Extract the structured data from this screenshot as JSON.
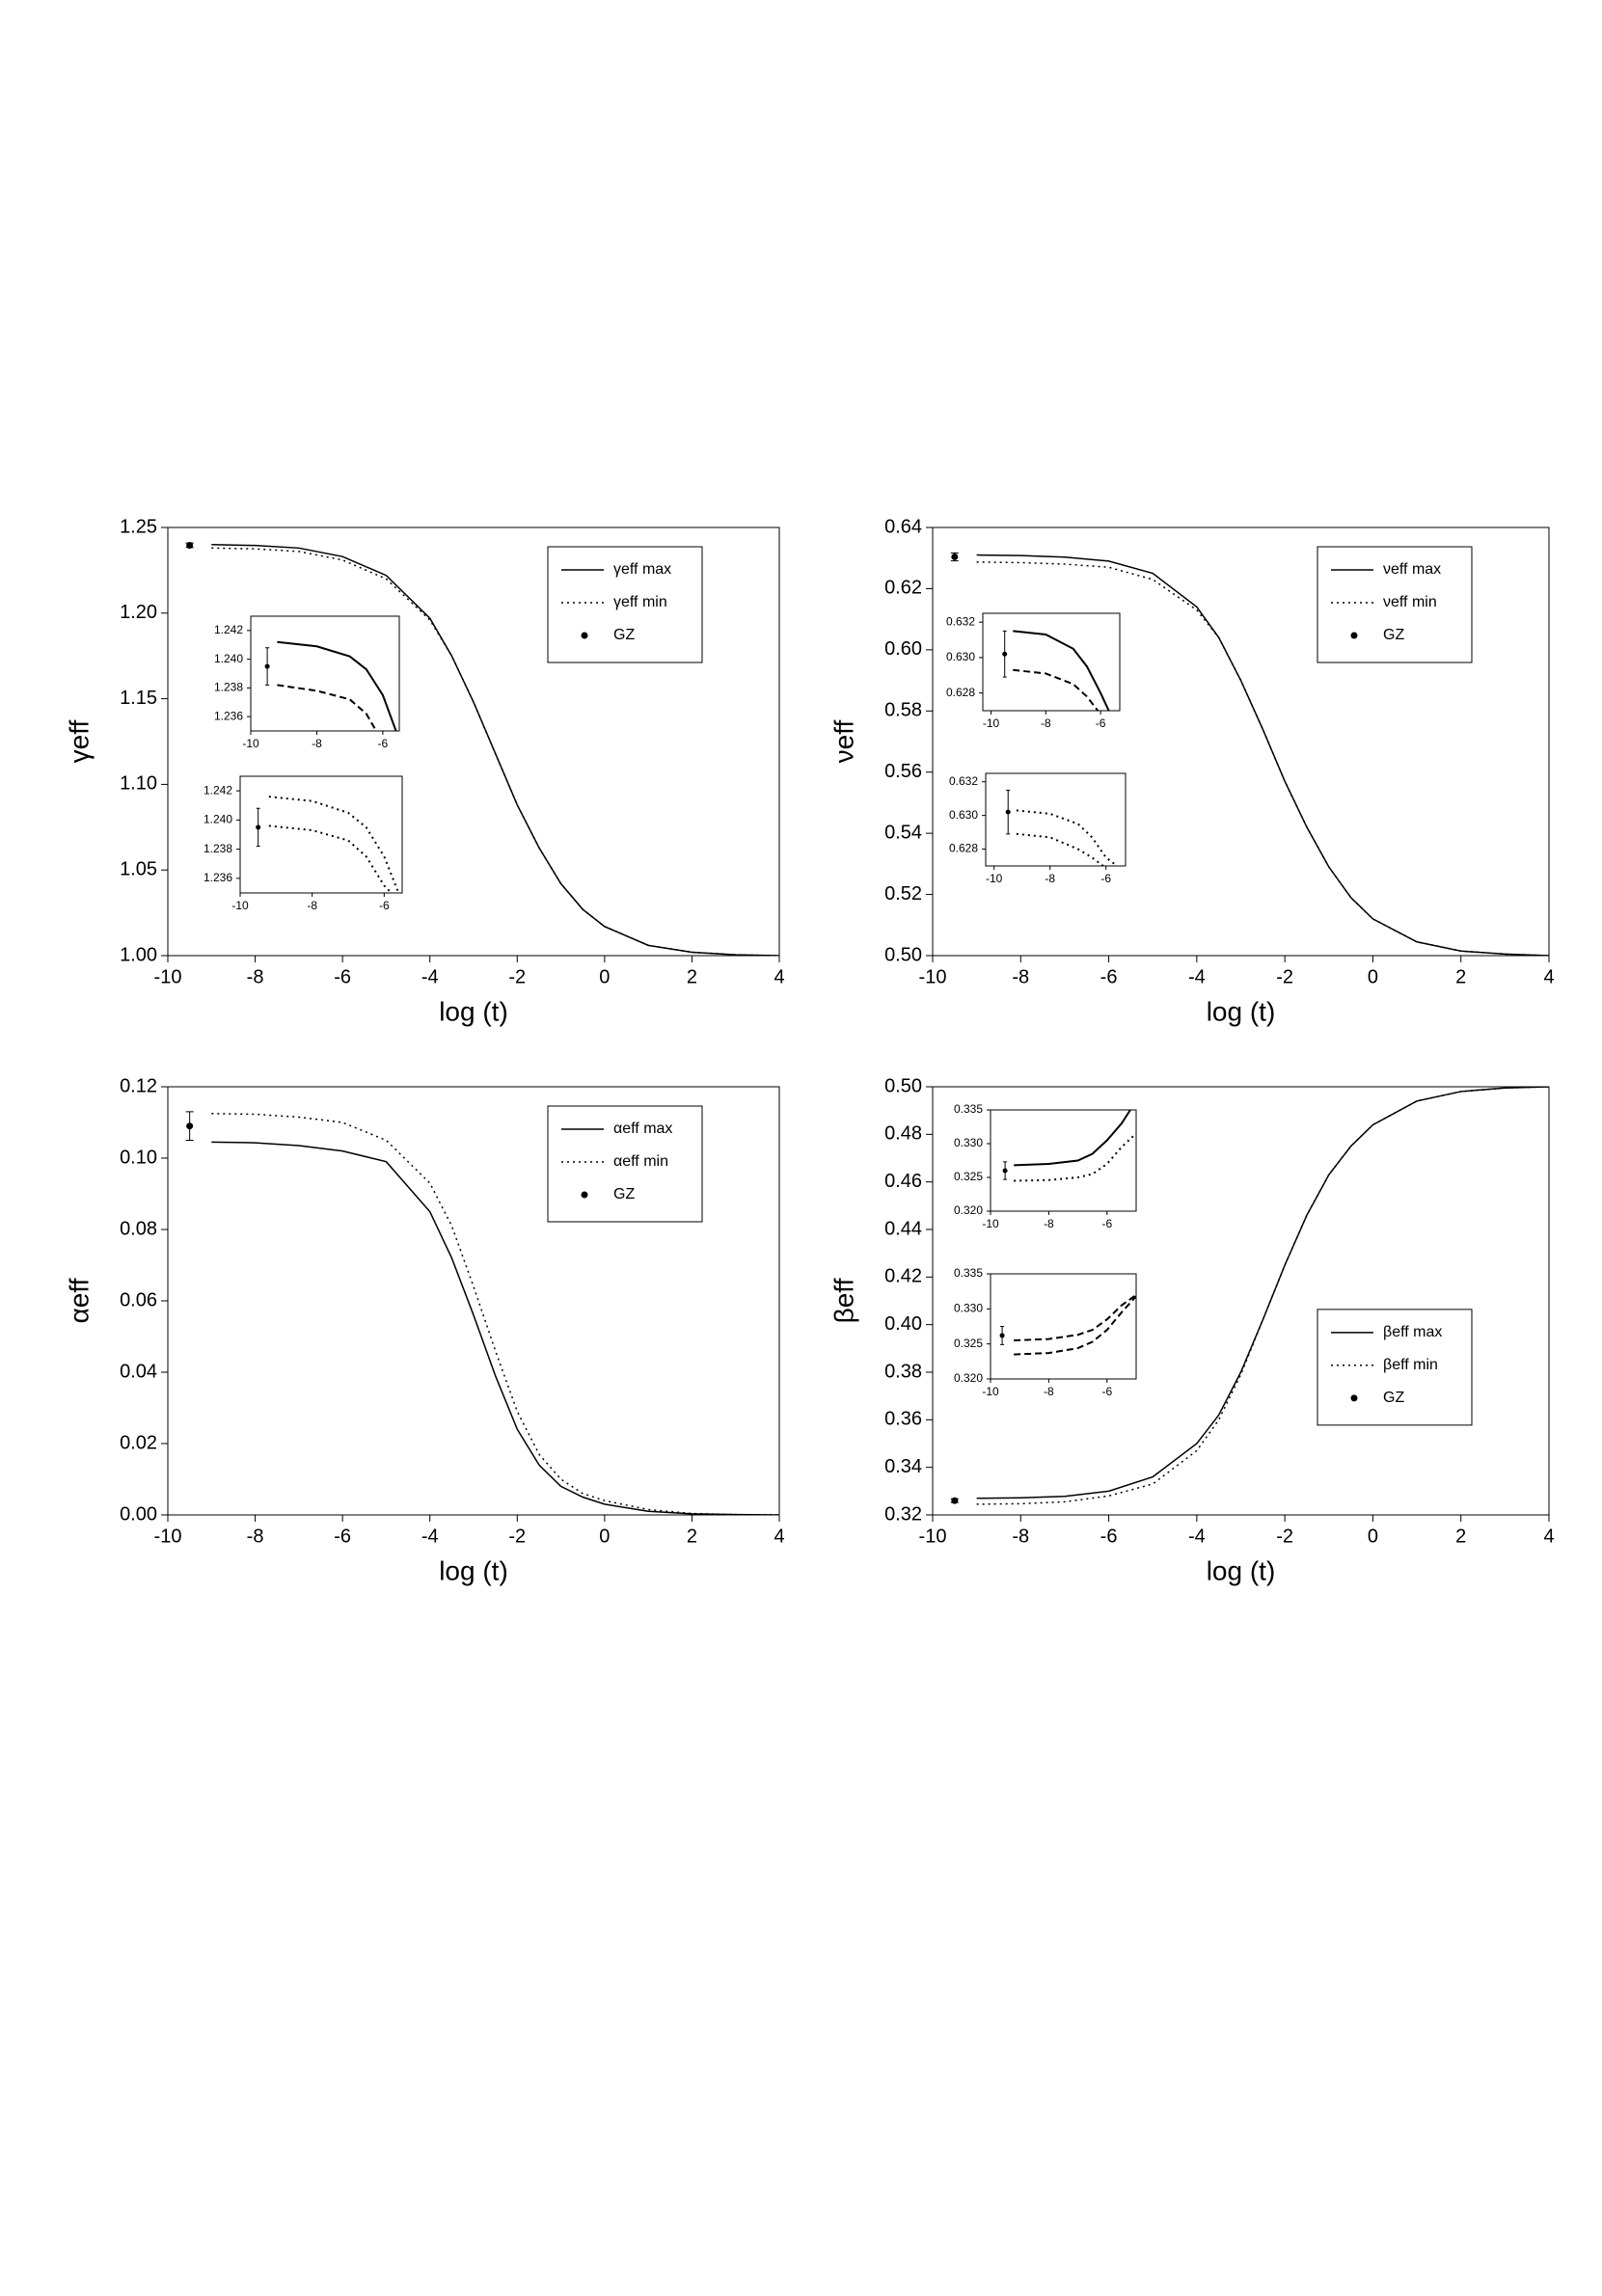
{
  "chart_data": [
    {
      "type": "line",
      "x_label": "log (t)",
      "y_label": "γeff",
      "legend": "upper right",
      "xlim": [
        -10,
        4
      ],
      "xticks": [
        -10,
        -8,
        -6,
        -4,
        -2,
        0,
        2,
        4
      ],
      "ylim": [
        1.0,
        1.25
      ],
      "yticks": [
        {
          "value": 1.0,
          "label": "1.00"
        },
        1.05,
        {
          "value": 1.1,
          "label": "1.10"
        },
        1.15,
        {
          "value": 1.2,
          "label": "1.20"
        },
        1.25
      ],
      "series": [
        {
          "name": "γeff max",
          "color": "#000000",
          "dash": "solid",
          "x": [
            -9,
            -8,
            -7,
            -6,
            -5,
            -4,
            -3.5,
            -3,
            -2.5,
            -2,
            -1.5,
            -1,
            -0.5,
            0,
            1,
            2,
            3,
            4
          ],
          "values": [
            1.24,
            1.2395,
            1.238,
            1.233,
            1.222,
            1.197,
            1.175,
            1.148,
            1.118,
            1.088,
            1.063,
            1.042,
            1.027,
            1.017,
            1.006,
            1.002,
            1.0005,
            1.0
          ]
        },
        {
          "name": "γeff min",
          "color": "#000000",
          "dash": "dotted",
          "x": [
            -9,
            -8,
            -7,
            -6,
            -5,
            -4,
            -3.5,
            -3,
            -2.5,
            -2,
            -1.5,
            -1,
            -0.5,
            0,
            1,
            2,
            3,
            4
          ],
          "values": [
            1.238,
            1.2375,
            1.236,
            1.231,
            1.22,
            1.196,
            1.175,
            1.148,
            1.118,
            1.088,
            1.063,
            1.042,
            1.027,
            1.017,
            1.006,
            1.002,
            1.0005,
            1.0
          ]
        },
        {
          "name": "GZ",
          "color": "#000000",
          "x": [
            -9.5
          ],
          "values": [
            1.2396
          ],
          "errors": [
            0.0013
          ]
        }
      ]
    },
    {
      "type": "line",
      "x_label": "log (t)",
      "y_label": "νeff",
      "legend": "upper right",
      "xlim": [
        -10,
        4
      ],
      "xticks": [
        -10,
        -8,
        -6,
        -4,
        -2,
        0,
        2,
        4
      ],
      "ylim": [
        0.5,
        0.64
      ],
      "yticks": [
        {
          "value": 0.5,
          "label": "0.50"
        },
        0.52,
        0.54,
        0.56,
        0.58,
        {
          "value": 0.6,
          "label": "0.60"
        },
        0.62,
        0.64
      ],
      "series": [
        {
          "name": "νeff max",
          "color": "#000000",
          "dash": "solid",
          "x": [
            -9,
            -8,
            -7,
            -6,
            -5,
            -4,
            -3.5,
            -3,
            -2.5,
            -2,
            -1.5,
            -1,
            -0.5,
            0,
            1,
            2,
            3,
            4
          ],
          "values": [
            0.631,
            0.6308,
            0.6303,
            0.629,
            0.625,
            0.614,
            0.604,
            0.59,
            0.574,
            0.557,
            0.542,
            0.529,
            0.519,
            0.512,
            0.5045,
            0.5015,
            0.5005,
            0.5
          ]
        },
        {
          "name": "νeff min",
          "color": "#000000",
          "dash": "dotted",
          "x": [
            -9,
            -8,
            -7,
            -6,
            -5,
            -4,
            -3.5,
            -3,
            -2.5,
            -2,
            -1.5,
            -1,
            -0.5,
            0,
            1,
            2,
            3,
            4
          ],
          "values": [
            0.6287,
            0.6285,
            0.628,
            0.627,
            0.623,
            0.613,
            0.604,
            0.59,
            0.574,
            0.557,
            0.542,
            0.529,
            0.519,
            0.512,
            0.5045,
            0.5015,
            0.5005,
            0.5
          ]
        },
        {
          "name": "GZ",
          "color": "#000000",
          "x": [
            -9.5
          ],
          "values": [
            0.6304
          ],
          "errors": [
            0.0013
          ]
        }
      ]
    },
    {
      "type": "line",
      "x_label": "log (t)",
      "y_label": "αeff",
      "legend": "upper right",
      "xlim": [
        -10,
        4
      ],
      "xticks": [
        -10,
        -8,
        -6,
        -4,
        -2,
        0,
        2,
        4
      ],
      "ylim": [
        0.0,
        0.12
      ],
      "yticks": [
        {
          "value": 0.0,
          "label": "0.00"
        },
        0.02,
        0.04,
        0.06,
        0.08,
        {
          "value": 0.1,
          "label": "0.10"
        },
        0.12
      ],
      "series": [
        {
          "name": "αeff max",
          "color": "#000000",
          "dash": "solid",
          "x": [
            -9,
            -8,
            -7,
            -6,
            -5,
            -4,
            -3.5,
            -3,
            -2.5,
            -2,
            -1.5,
            -1,
            -0.5,
            0,
            1,
            2,
            3,
            4
          ],
          "values": [
            0.1045,
            0.1043,
            0.1035,
            0.102,
            0.099,
            0.085,
            0.072,
            0.056,
            0.039,
            0.024,
            0.014,
            0.008,
            0.005,
            0.003,
            0.001,
            0.0003,
            0.0001,
            0.0
          ]
        },
        {
          "name": "αeff min",
          "color": "#000000",
          "dash": "dotted",
          "x": [
            -9,
            -8,
            -7,
            -6,
            -5,
            -4,
            -3.5,
            -3,
            -2.5,
            -2,
            -1.5,
            -1,
            -0.5,
            0,
            1,
            2,
            3,
            4
          ],
          "values": [
            0.1125,
            0.1123,
            0.1115,
            0.11,
            0.105,
            0.093,
            0.081,
            0.064,
            0.046,
            0.029,
            0.017,
            0.01,
            0.006,
            0.004,
            0.0015,
            0.0004,
            0.0001,
            0.0
          ]
        },
        {
          "name": "GZ",
          "color": "#000000",
          "x": [
            -9.5
          ],
          "values": [
            0.109
          ],
          "errors": [
            0.004
          ]
        }
      ]
    },
    {
      "type": "line",
      "x_label": "log (t)",
      "y_label": "βeff",
      "legend": "center right",
      "xlim": [
        -10,
        4
      ],
      "xticks": [
        -10,
        -8,
        -6,
        -4,
        -2,
        0,
        2,
        4
      ],
      "ylim": [
        0.32,
        0.5
      ],
      "yticks": [
        0.32,
        0.34,
        0.36,
        0.38,
        {
          "value": 0.4,
          "label": "0.40"
        },
        0.42,
        0.44,
        0.46,
        0.48,
        {
          "value": 0.5,
          "label": "0.50"
        }
      ],
      "series": [
        {
          "name": "βeff max",
          "color": "#000000",
          "dash": "solid",
          "x": [
            -9,
            -8,
            -7,
            -6,
            -5,
            -4,
            -3.5,
            -3,
            -2.5,
            -2,
            -1.5,
            -1,
            -0.5,
            0,
            1,
            2,
            3,
            4
          ],
          "values": [
            0.327,
            0.3272,
            0.3278,
            0.33,
            0.336,
            0.35,
            0.362,
            0.38,
            0.402,
            0.425,
            0.446,
            0.463,
            0.475,
            0.484,
            0.494,
            0.498,
            0.4995,
            0.5
          ]
        },
        {
          "name": "βeff min",
          "color": "#000000",
          "dash": "dotted",
          "x": [
            -9,
            -8,
            -7,
            -6,
            -5,
            -4,
            -3.5,
            -3,
            -2.5,
            -2,
            -1.5,
            -1,
            -0.5,
            0,
            1,
            2,
            3,
            4
          ],
          "values": [
            0.3245,
            0.3247,
            0.3255,
            0.328,
            0.333,
            0.347,
            0.36,
            0.379,
            0.402,
            0.425,
            0.446,
            0.463,
            0.475,
            0.484,
            0.494,
            0.498,
            0.4995,
            0.5
          ]
        },
        {
          "name": "GZ",
          "color": "#000000",
          "x": [
            -9.5
          ],
          "values": [
            0.326
          ],
          "errors": [
            0.0008
          ]
        }
      ]
    },
    {
      "type": "line",
      "xlim": [
        -10,
        -5.5
      ],
      "xticks": [
        -10,
        -8,
        -6
      ],
      "ylim": [
        1.235,
        1.243
      ],
      "yticks": [
        1.236,
        1.238,
        {
          "value": 1.24,
          "label": "1.240"
        },
        1.242
      ],
      "series": [
        {
          "color": "#000000",
          "dash": "solid",
          "x": [
            -9.2,
            -8,
            -7,
            -6.5,
            -6,
            -5.6
          ],
          "values": [
            1.2412,
            1.2409,
            1.2402,
            1.2393,
            1.2375,
            1.235
          ]
        },
        {
          "color": "#000000",
          "dash": "dashed",
          "x": [
            -9.2,
            -8,
            -7,
            -6.5,
            -6.2
          ],
          "values": [
            1.2382,
            1.2378,
            1.2372,
            1.2362,
            1.235
          ]
        },
        {
          "color": "#000000",
          "x": [
            -9.5
          ],
          "values": [
            1.2395
          ],
          "errors": [
            0.0013
          ]
        }
      ]
    },
    {
      "type": "line",
      "xlim": [
        -10,
        -5.5
      ],
      "xticks": [
        -10,
        -8,
        -6
      ],
      "ylim": [
        1.235,
        1.243
      ],
      "yticks": [
        1.236,
        1.238,
        {
          "value": 1.24,
          "label": "1.240"
        },
        1.242
      ],
      "series": [
        {
          "color": "#000000",
          "dash": "dotted",
          "x": [
            -9.2,
            -8,
            -7,
            -6.5,
            -6,
            -5.6
          ],
          "values": [
            1.2416,
            1.2413,
            1.2405,
            1.2395,
            1.2375,
            1.235
          ]
        },
        {
          "color": "#000000",
          "dash": "dotted",
          "x": [
            -9.2,
            -8,
            -7,
            -6.5,
            -6,
            -5.8
          ],
          "values": [
            1.2396,
            1.2393,
            1.2386,
            1.2375,
            1.2355,
            1.235
          ]
        },
        {
          "color": "#000000",
          "x": [
            -9.5
          ],
          "values": [
            1.2395
          ],
          "errors": [
            0.0013
          ]
        }
      ]
    },
    {
      "type": "line",
      "xlim": [
        -10.3,
        -5.3
      ],
      "xticks": [
        -10,
        -8,
        -6
      ],
      "ylim": [
        0.627,
        0.6325
      ],
      "yticks": [
        0.628,
        {
          "value": 0.63,
          "label": "0.630"
        },
        0.632
      ],
      "series": [
        {
          "color": "#000000",
          "dash": "solid",
          "x": [
            -9.2,
            -8,
            -7,
            -6.5,
            -6,
            -5.7
          ],
          "values": [
            0.6315,
            0.6313,
            0.6305,
            0.6295,
            0.628,
            0.627
          ]
        },
        {
          "color": "#000000",
          "dash": "dashed",
          "x": [
            -9.2,
            -8,
            -7,
            -6.5,
            -6.1
          ],
          "values": [
            0.6293,
            0.6291,
            0.6285,
            0.6278,
            0.627
          ]
        },
        {
          "color": "#000000",
          "x": [
            -9.5
          ],
          "values": [
            0.6302
          ],
          "errors": [
            0.0013
          ]
        }
      ]
    },
    {
      "type": "line",
      "xlim": [
        -10.3,
        -5.3
      ],
      "xticks": [
        -10,
        -8,
        -6
      ],
      "ylim": [
        0.627,
        0.6325
      ],
      "yticks": [
        0.628,
        {
          "value": 0.63,
          "label": "0.630"
        },
        0.632
      ],
      "series": [
        {
          "color": "#000000",
          "dash": "dotted",
          "x": [
            -9.2,
            -8,
            -7,
            -6.5,
            -6,
            -5.6
          ],
          "values": [
            0.6303,
            0.6301,
            0.6295,
            0.6287,
            0.6275,
            0.627
          ]
        },
        {
          "color": "#000000",
          "dash": "dotted",
          "x": [
            -9.2,
            -8,
            -7,
            -6.5,
            -6.1
          ],
          "values": [
            0.6289,
            0.6287,
            0.628,
            0.6275,
            0.627
          ]
        },
        {
          "color": "#000000",
          "x": [
            -9.5
          ],
          "values": [
            0.6302
          ],
          "errors": [
            0.0013
          ]
        }
      ]
    },
    {
      "type": "line",
      "xlim": [
        -10,
        -5
      ],
      "xticks": [
        -10,
        -8,
        -6
      ],
      "ylim": [
        0.32,
        0.335
      ],
      "yticks": [
        {
          "value": 0.32,
          "label": "0.320"
        },
        0.325,
        {
          "value": 0.33,
          "label": "0.330"
        },
        0.335
      ],
      "series": [
        {
          "color": "#000000",
          "dash": "solid",
          "x": [
            -9.2,
            -8,
            -7,
            -6.5,
            -6,
            -5.5,
            -5.2
          ],
          "values": [
            0.3268,
            0.327,
            0.3275,
            0.3285,
            0.3305,
            0.333,
            0.335
          ]
        },
        {
          "color": "#000000",
          "dash": "dotted",
          "x": [
            -9.2,
            -8,
            -7,
            -6.5,
            -6,
            -5.5,
            -5
          ],
          "values": [
            0.3245,
            0.3246,
            0.325,
            0.3255,
            0.327,
            0.3295,
            0.3315
          ]
        },
        {
          "color": "#000000",
          "x": [
            -9.5
          ],
          "values": [
            0.326
          ],
          "errors": [
            0.0013
          ]
        }
      ]
    },
    {
      "type": "line",
      "xlim": [
        -10,
        -5
      ],
      "xticks": [
        -10,
        -8,
        -6
      ],
      "ylim": [
        0.32,
        0.335
      ],
      "yticks": [
        {
          "value": 0.32,
          "label": "0.320"
        },
        0.325,
        {
          "value": 0.33,
          "label": "0.330"
        },
        0.335
      ],
      "series": [
        {
          "color": "#000000",
          "dash": "dashed",
          "x": [
            -9.2,
            -8,
            -7,
            -6.5,
            -6,
            -5.5,
            -5
          ],
          "values": [
            0.3255,
            0.3257,
            0.3263,
            0.327,
            0.3285,
            0.3305,
            0.332
          ]
        },
        {
          "color": "#000000",
          "dash": "dashed",
          "x": [
            -9.2,
            -8,
            -7,
            -6.5,
            -6,
            -5.5,
            -5
          ],
          "values": [
            0.3235,
            0.3237,
            0.3244,
            0.3253,
            0.327,
            0.3295,
            0.3318
          ]
        },
        {
          "color": "#000000",
          "x": [
            -9.6
          ],
          "values": [
            0.3262
          ],
          "errors": [
            0.0013
          ]
        }
      ]
    }
  ]
}
